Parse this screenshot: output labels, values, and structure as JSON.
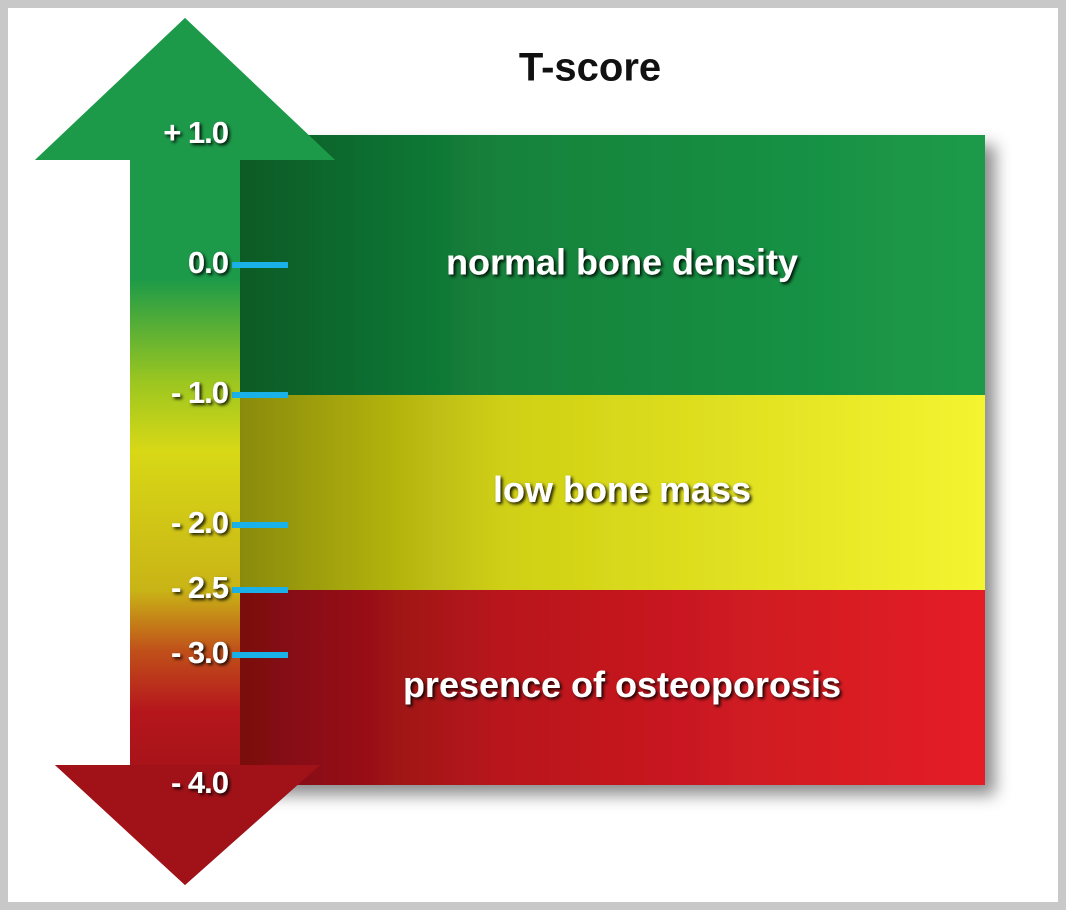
{
  "title": "T-score",
  "scale": {
    "range": [
      1.0,
      -4.0
    ],
    "ticks": [
      {
        "value": 1.0,
        "label": "+ 1.0"
      },
      {
        "value": 0.0,
        "label": "0.0"
      },
      {
        "value": -1.0,
        "label": "- 1.0"
      },
      {
        "value": -2.0,
        "label": "- 2.0"
      },
      {
        "value": -2.5,
        "label": "- 2.5"
      },
      {
        "value": -3.0,
        "label": "- 3.0"
      },
      {
        "value": -4.0,
        "label": "- 4.0"
      }
    ]
  },
  "zones": [
    {
      "label": "normal bone density",
      "from": 1.0,
      "to": -1.0
    },
    {
      "label": "low bone mass",
      "from": -1.0,
      "to": -2.5
    },
    {
      "label": "presence of osteoporosis",
      "from": -2.5,
      "to": -4.0
    }
  ]
}
